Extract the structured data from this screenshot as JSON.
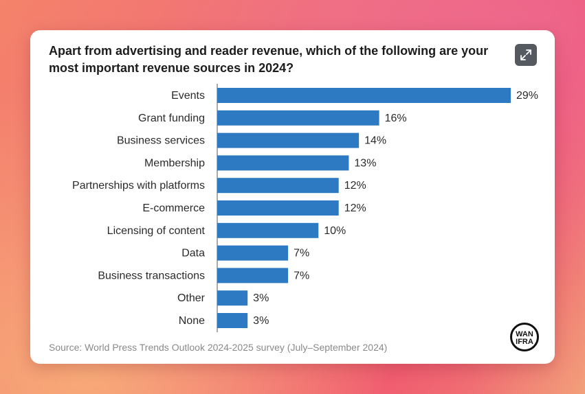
{
  "card": {
    "title": "Apart from advertising and reader revenue, which of the following are your most important revenue sources in 2024?",
    "source": "Source: World Press Trends Outlook 2024-2025 survey (July–September 2024)",
    "expand_icon": "expand-icon",
    "logo_text_top": "WAN",
    "logo_text_bottom": "IFRA"
  },
  "colors": {
    "bar": "#2d7ac2",
    "axis": "#555555"
  },
  "chart_data": {
    "type": "bar",
    "orientation": "horizontal",
    "categories": [
      "Events",
      "Grant funding",
      "Business services",
      "Membership",
      "Partnerships with platforms",
      "E-commerce",
      "Licensing of content",
      "Data",
      "Business transactions",
      "Other",
      "None"
    ],
    "values": [
      29,
      16,
      14,
      13,
      12,
      12,
      10,
      7,
      7,
      3,
      3
    ],
    "value_labels": [
      "29%",
      "16%",
      "14%",
      "13%",
      "12%",
      "12%",
      "10%",
      "7%",
      "7%",
      "3%",
      "3%"
    ],
    "title": "Apart from advertising and reader revenue, which of the following are your most important revenue sources in 2024?",
    "xlabel": "",
    "ylabel": "",
    "xlim": [
      0,
      29
    ],
    "grid": false,
    "legend": "none"
  }
}
